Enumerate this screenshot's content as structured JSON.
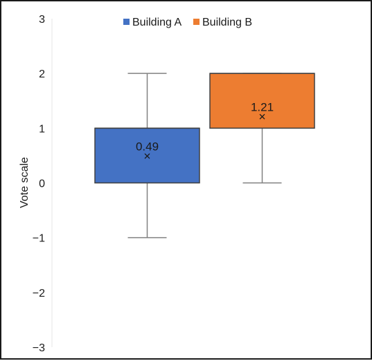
{
  "chart_data": {
    "type": "box",
    "title": "",
    "xlabel": "",
    "ylabel": "Vote scale",
    "ylim": [
      -3,
      3
    ],
    "yticks": [
      3,
      2,
      1,
      0,
      -1,
      -2,
      -3
    ],
    "ytick_labels": [
      "3",
      "2",
      "1",
      "0",
      "−1",
      "−2",
      "−3"
    ],
    "grid": false,
    "legend_position": "top-center",
    "series": [
      {
        "name": "Building A",
        "color": "#4472c4",
        "min": -1,
        "q1": 0,
        "median": 1,
        "q3": 1,
        "max": 2,
        "mean": 0.49,
        "mean_label": "0.49"
      },
      {
        "name": "Building B",
        "color": "#ed7d31",
        "min": 0,
        "q1": 1,
        "median": 2,
        "q3": 2,
        "max": 2,
        "mean": 1.21,
        "mean_label": "1.21"
      }
    ]
  }
}
